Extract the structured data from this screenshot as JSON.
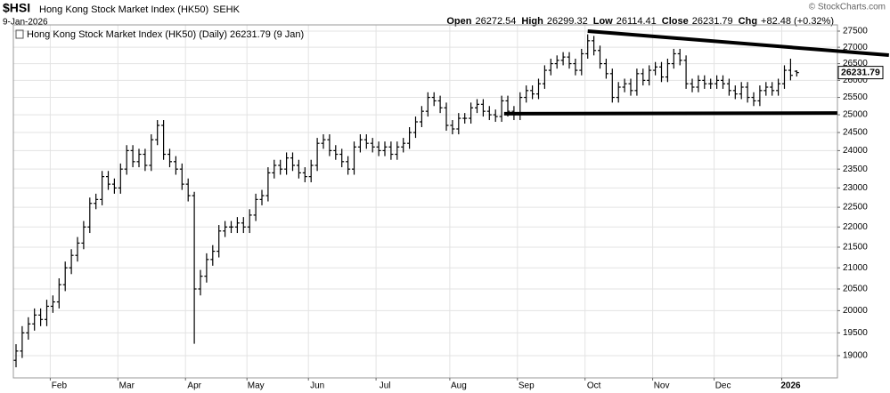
{
  "header": {
    "symbol": "$HSI",
    "name": "Hong Kong Stock Market Index (HK50)",
    "exchange": "SEHK",
    "date": "9-Jan-2026",
    "source": "© StockCharts.com",
    "quote": [
      {
        "label": "Open",
        "value": "26272.54"
      },
      {
        "label": "High",
        "value": "26299.32"
      },
      {
        "label": "Low",
        "value": "26114.41"
      },
      {
        "label": "Close",
        "value": "26231.79"
      },
      {
        "label": "Chg",
        "value": "+82.48 (+0.32%)"
      }
    ]
  },
  "chart_data": {
    "type": "ohlc",
    "legend": "Hong Kong Stock Market Index (HK50) (Daily) 26231.79 (9 Jan)",
    "last_price_label": "26231.79",
    "color": "#000000",
    "log_scale": true,
    "grid": true,
    "categories": [
      null,
      null,
      null,
      null,
      null,
      null,
      "Feb",
      null,
      null,
      null,
      null,
      null,
      null,
      null,
      null,
      null,
      null,
      "Mar",
      null,
      null,
      null,
      null,
      null,
      null,
      null,
      null,
      null,
      null,
      "Apr",
      null,
      null,
      null,
      null,
      null,
      null,
      null,
      null,
      null,
      "May",
      null,
      null,
      null,
      null,
      null,
      null,
      null,
      null,
      null,
      "Jun",
      null,
      null,
      null,
      null,
      null,
      null,
      null,
      null,
      null,
      null,
      "Jul",
      null,
      null,
      null,
      null,
      null,
      null,
      null,
      null,
      null,
      null,
      null,
      "Aug",
      null,
      null,
      null,
      null,
      null,
      null,
      null,
      null,
      null,
      null,
      "Sep",
      null,
      null,
      null,
      null,
      null,
      null,
      null,
      null,
      null,
      null,
      "Oct",
      null,
      null,
      null,
      null,
      null,
      null,
      null,
      null,
      null,
      null,
      "Nov",
      null,
      null,
      null,
      null,
      null,
      null,
      null,
      null,
      null,
      "Dec",
      null,
      null,
      null,
      null,
      null,
      null,
      null,
      null,
      null,
      null,
      "2026",
      null,
      null
    ],
    "open": [
      18900,
      19100,
      19500,
      19700,
      19900,
      19800,
      20100,
      20200,
      20600,
      21000,
      21300,
      21600,
      22000,
      22600,
      22700,
      23300,
      23100,
      23000,
      23500,
      24000,
      23700,
      23900,
      23600,
      24300,
      24700,
      23900,
      23700,
      23500,
      23100,
      22800,
      20500,
      20800,
      21200,
      21400,
      21900,
      22000,
      22000,
      22100,
      22000,
      22300,
      22700,
      22800,
      23400,
      23600,
      23500,
      23800,
      23600,
      23400,
      23300,
      23600,
      24200,
      24300,
      24000,
      23900,
      23700,
      23500,
      24100,
      24300,
      24200,
      24100,
      24000,
      24100,
      23900,
      24100,
      24200,
      24500,
      24800,
      25100,
      25500,
      25400,
      25200,
      24700,
      24600,
      24900,
      24900,
      25200,
      25300,
      25100,
      25000,
      24950,
      25400,
      25100,
      25000,
      25500,
      25700,
      25600,
      25900,
      26300,
      26500,
      26600,
      26700,
      26500,
      26300,
      26800,
      27200,
      26900,
      26500,
      26200,
      25500,
      25800,
      25900,
      25700,
      26200,
      26000,
      26300,
      26400,
      26100,
      26500,
      26800,
      26600,
      25900,
      25800,
      26000,
      25900,
      25900,
      26000,
      25900,
      25700,
      25600,
      25800,
      25500,
      25400,
      25700,
      25800,
      25700,
      25900,
      26300,
      26272.54
    ],
    "high": [
      19250,
      19650,
      19850,
      20050,
      20050,
      20250,
      20350,
      20750,
      21150,
      21450,
      21750,
      22150,
      22750,
      22850,
      23450,
      23450,
      23250,
      23650,
      24150,
      24150,
      24050,
      24050,
      24450,
      24850,
      24850,
      24050,
      23850,
      23650,
      23250,
      22900,
      20950,
      21350,
      21550,
      22050,
      22150,
      22150,
      22250,
      22250,
      22450,
      22850,
      22950,
      23550,
      23750,
      23750,
      23950,
      23950,
      23750,
      23550,
      23750,
      24350,
      24450,
      24450,
      24150,
      24050,
      23850,
      24250,
      24450,
      24450,
      24350,
      24250,
      24250,
      24250,
      24250,
      24350,
      24650,
      24950,
      25250,
      25650,
      25650,
      25550,
      25350,
      24850,
      25050,
      25050,
      25350,
      25450,
      25450,
      25250,
      25150,
      25550,
      25550,
      25250,
      25650,
      25850,
      25850,
      26050,
      26450,
      26650,
      26750,
      26850,
      26850,
      26650,
      26950,
      27400,
      27350,
      27050,
      26650,
      26350,
      25950,
      26050,
      26050,
      26350,
      26350,
      26450,
      26550,
      26550,
      26650,
      26950,
      26950,
      26750,
      26050,
      26150,
      26150,
      26050,
      26150,
      26150,
      26050,
      25850,
      25950,
      25950,
      25650,
      25850,
      25950,
      25950,
      26050,
      26450,
      26650,
      26299.32
    ],
    "low": [
      18750,
      18950,
      19350,
      19550,
      19650,
      19650,
      19950,
      20050,
      20450,
      20850,
      21150,
      21450,
      21850,
      22450,
      22550,
      22950,
      22850,
      22850,
      23350,
      23550,
      23550,
      23450,
      23450,
      24150,
      23750,
      23550,
      23350,
      22950,
      22650,
      19260,
      20350,
      20650,
      21050,
      21250,
      21750,
      21850,
      21850,
      21850,
      21850,
      22150,
      22550,
      22650,
      23250,
      23350,
      23350,
      23450,
      23250,
      23150,
      23150,
      23450,
      24050,
      23850,
      23750,
      23550,
      23350,
      23350,
      23950,
      24050,
      23950,
      23850,
      23850,
      23750,
      23750,
      23950,
      24050,
      24350,
      24650,
      24950,
      25250,
      25050,
      24550,
      24450,
      24450,
      24750,
      24750,
      25050,
      24950,
      24850,
      24800,
      24800,
      24950,
      24850,
      24850,
      25350,
      25450,
      25450,
      25750,
      26150,
      26350,
      26450,
      26350,
      26150,
      26150,
      26650,
      26750,
      26350,
      26050,
      25350,
      25350,
      25650,
      25550,
      25550,
      25850,
      25850,
      26150,
      25950,
      25950,
      26350,
      26450,
      25750,
      25650,
      25650,
      25750,
      25750,
      25750,
      25750,
      25550,
      25450,
      25450,
      25350,
      25250,
      25250,
      25550,
      25550,
      25550,
      25750,
      26000,
      26114.41
    ],
    "close": [
      19100,
      19500,
      19700,
      19900,
      19800,
      20100,
      20200,
      20600,
      21000,
      21300,
      21600,
      22000,
      22600,
      22700,
      23300,
      23100,
      23000,
      23500,
      24000,
      23700,
      23900,
      23600,
      24300,
      24700,
      23900,
      23700,
      23500,
      23100,
      22800,
      20500,
      20800,
      21200,
      21400,
      21900,
      22000,
      22000,
      22100,
      22000,
      22300,
      22700,
      22800,
      23400,
      23600,
      23500,
      23800,
      23600,
      23400,
      23300,
      23600,
      24200,
      24300,
      24000,
      23900,
      23700,
      23500,
      24100,
      24300,
      24200,
      24100,
      24000,
      24100,
      23900,
      24100,
      24200,
      24500,
      24800,
      25100,
      25500,
      25400,
      25200,
      24700,
      24600,
      24900,
      24900,
      25200,
      25300,
      25100,
      25000,
      24950,
      25400,
      25100,
      25000,
      25500,
      25700,
      25600,
      25900,
      26300,
      26500,
      26600,
      26700,
      26500,
      26300,
      26800,
      27200,
      26900,
      26500,
      26200,
      25500,
      25800,
      25900,
      25700,
      26200,
      26000,
      26300,
      26400,
      26100,
      26500,
      26800,
      26600,
      25900,
      25800,
      26000,
      25900,
      25900,
      26000,
      25900,
      25700,
      25600,
      25800,
      25500,
      25400,
      25700,
      25800,
      25700,
      25900,
      26300,
      26149.31,
      26231.79
    ],
    "ylim": [
      18525,
      27696
    ],
    "yticks": [
      19000,
      19500,
      20000,
      20500,
      21000,
      21500,
      22000,
      22500,
      23000,
      23500,
      24000,
      24500,
      25000,
      25500,
      26000,
      26500,
      27000,
      27500
    ],
    "trendlines": [
      {
        "x": [
          93,
          142
        ],
        "y": [
          27500,
          26758
        ]
      },
      {
        "x": [
          79.4,
          133.6
        ],
        "y": [
          25030,
          25050
        ]
      }
    ]
  }
}
